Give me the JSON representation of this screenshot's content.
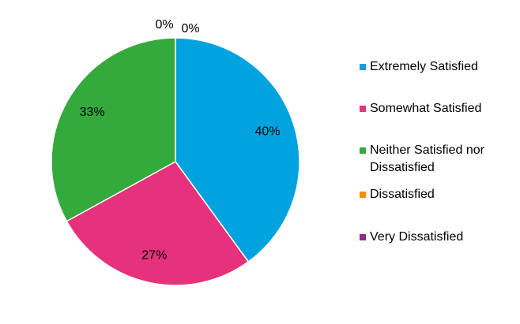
{
  "chart_data": {
    "type": "pie",
    "categories": [
      "Extremely Satisfied",
      "Somewhat Satisfied",
      "Neither Satisfied nor Dissatisfied",
      "Dissatisfied",
      "Very Dissatisfied"
    ],
    "values": [
      40,
      27,
      33,
      0,
      0
    ],
    "value_labels": [
      "40%",
      "27%",
      "33%",
      "0%",
      "0%"
    ],
    "colors": [
      "#00a3de",
      "#e6317d",
      "#34a93c",
      "#f39200",
      "#8c2a84"
    ],
    "legend": "right"
  }
}
